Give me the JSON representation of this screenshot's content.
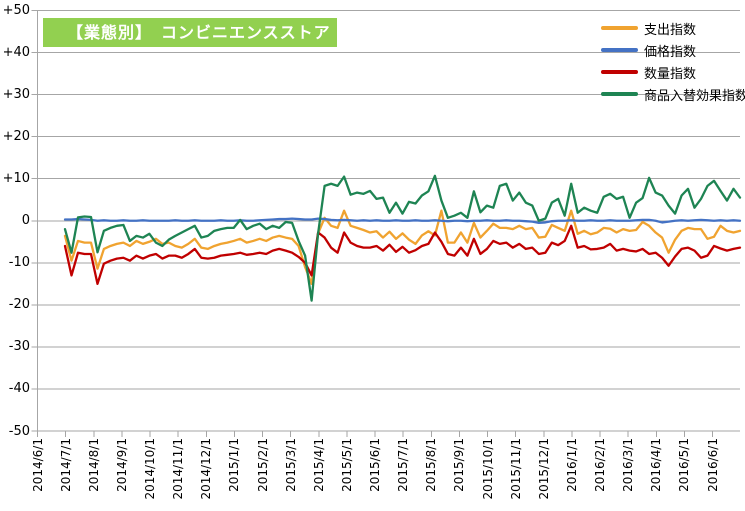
{
  "title": {
    "text": "【業態別】　コンビニエンスストア",
    "bg_color": "#92D050",
    "text_color": "#FFFFFF"
  },
  "chart_data": {
    "type": "line",
    "title": "【業態別】 コンビニエンスストア",
    "grid": true,
    "legend_position": "top-right",
    "y_axis": {
      "min": -50,
      "max": 50,
      "step": 10,
      "tick_labels": [
        "+50",
        "+40",
        "+30",
        "+20",
        "+10",
        "0",
        "-10",
        "-20",
        "-30",
        "-40",
        "-50"
      ]
    },
    "x_axis": {
      "tick_labels": [
        "2014/6/1",
        "2014/7/1",
        "2014/8/1",
        "2014/9/1",
        "2014/10/1",
        "2014/11/1",
        "2014/12/1",
        "2015/1/1",
        "2015/2/1",
        "2015/3/1",
        "2015/4/1",
        "2015/5/1",
        "2015/6/1",
        "2015/7/1",
        "2015/8/1",
        "2015/9/1",
        "2015/10/1",
        "2015/11/1",
        "2015/12/1",
        "2016/1/1",
        "2016/2/1",
        "2016/3/1",
        "2016/4/1",
        "2016/5/1",
        "2016/6/1"
      ]
    },
    "series": [
      {
        "name": "支出指数",
        "key": "expenditure-index",
        "color": "#F0A330",
        "values": [
          -3.6,
          -9.5,
          -4.8,
          -5.2,
          -5.2,
          -11.4,
          -6.7,
          -6,
          -5.5,
          -5.2,
          -6,
          -4.8,
          -5.5,
          -5,
          -4.3,
          -5.5,
          -5.2,
          -6,
          -6.4,
          -5.5,
          -4.3,
          -6.4,
          -6.7,
          -6,
          -5.5,
          -5.2,
          -4.8,
          -4.3,
          -5.2,
          -4.8,
          -4.3,
          -4.8,
          -4,
          -3.6,
          -4,
          -4.3,
          -6,
          -11,
          -15,
          -3,
          0.7,
          -1.2,
          -1.7,
          2.4,
          -1.2,
          -1.7,
          -2.2,
          -2.8,
          -2.5,
          -4,
          -2.6,
          -4.3,
          -3,
          -4.5,
          -5.5,
          -3.5,
          -2.5,
          -3.5,
          2.4,
          -5.2,
          -5.2,
          -2.8,
          -5.2,
          -0.5,
          -4,
          -2.4,
          -0.7,
          -1.7,
          -1.7,
          -2,
          -1.2,
          -2,
          -1.7,
          -4,
          -3.8,
          -1,
          -1.7,
          -2.4,
          2.4,
          -3.1,
          -2.4,
          -3.2,
          -2.8,
          -1.7,
          -1.9,
          -2.8,
          -2,
          -2.4,
          -2.2,
          -0.3,
          -1.2,
          -2.8,
          -4,
          -7.6,
          -4.5,
          -2.4,
          -1.7,
          -2,
          -2,
          -4.3,
          -3.8,
          -1.2,
          -2.4,
          -2.8,
          -2.4
        ]
      },
      {
        "name": "価格指数",
        "key": "price-index",
        "color": "#4472C4",
        "values": [
          0.3,
          0.3,
          0.4,
          0.3,
          0.2,
          0,
          0.1,
          0,
          0,
          0.1,
          0,
          0,
          0.1,
          0,
          0,
          0,
          0,
          0.1,
          0,
          0,
          0.1,
          0,
          0,
          0,
          0.1,
          0,
          0,
          0.1,
          0,
          0,
          0.1,
          0.2,
          0.3,
          0.4,
          0.4,
          0.5,
          0.4,
          0.3,
          0.3,
          0.5,
          0.4,
          0.2,
          0.1,
          0.2,
          0.1,
          0,
          0.1,
          0,
          0.1,
          0,
          0,
          0.1,
          0,
          0,
          0.1,
          0,
          0,
          0.1,
          0,
          -0.1,
          0,
          0,
          -0.1,
          0,
          0,
          0.1,
          0,
          0,
          0.1,
          0,
          0,
          -0.1,
          -0.2,
          -0.5,
          -0.4,
          -0.1,
          0,
          0,
          0.1,
          0,
          0,
          0.1,
          0,
          0,
          0.1,
          0,
          0,
          0,
          0.1,
          0.2,
          0.2,
          0,
          -0.4,
          -0.2,
          0,
          0.1,
          0,
          0.1,
          0.2,
          0.1,
          0,
          0.1,
          0,
          0.1,
          0
        ]
      },
      {
        "name": "数量指数",
        "key": "quantity-index",
        "color": "#C00000",
        "values": [
          -6,
          -13,
          -7.6,
          -7.9,
          -7.9,
          -15,
          -10.2,
          -9.5,
          -9,
          -8.8,
          -9.5,
          -8.3,
          -9,
          -8.3,
          -7.9,
          -9,
          -8.3,
          -8.3,
          -8.8,
          -7.9,
          -6.7,
          -8.8,
          -9,
          -8.8,
          -8.3,
          -8.1,
          -7.9,
          -7.6,
          -8.1,
          -7.9,
          -7.6,
          -7.9,
          -7.1,
          -6.7,
          -7.1,
          -7.6,
          -8.6,
          -10,
          -13,
          -2.8,
          -4,
          -6.4,
          -7.6,
          -2.8,
          -5.2,
          -6,
          -6.4,
          -6.4,
          -6,
          -7.1,
          -5.7,
          -7.4,
          -6.2,
          -7.6,
          -7,
          -6,
          -5.5,
          -2.8,
          -5,
          -7.9,
          -8.3,
          -6.4,
          -8.3,
          -4.3,
          -7.9,
          -6.7,
          -4.8,
          -5.5,
          -5.2,
          -6.4,
          -5.5,
          -6.7,
          -6.4,
          -7.9,
          -7.6,
          -5.2,
          -5.8,
          -4.8,
          -1.2,
          -6.4,
          -6,
          -6.8,
          -6.7,
          -6.4,
          -5.5,
          -7.1,
          -6.7,
          -7.1,
          -7.3,
          -6.7,
          -7.9,
          -7.6,
          -8.8,
          -10.7,
          -8.5,
          -6.7,
          -6.4,
          -7.1,
          -8.8,
          -8.3,
          -6,
          -6.6,
          -7.1,
          -6.7,
          -6.4
        ]
      },
      {
        "name": "商品入替効果指数",
        "key": "product-replacement-index",
        "color": "#1E8453",
        "values": [
          -2,
          -7.6,
          0.8,
          1,
          0.9,
          -7.5,
          -2.4,
          -1.7,
          -1.2,
          -1,
          -4.8,
          -3.6,
          -4,
          -3.1,
          -5.2,
          -6,
          -4.5,
          -3.6,
          -2.8,
          -2,
          -1.2,
          -4,
          -3.6,
          -2.4,
          -2,
          -1.7,
          -1.7,
          0.2,
          -2,
          -1.2,
          -0.7,
          -2,
          -1.2,
          -1.7,
          -0.3,
          -0.5,
          -4.8,
          -8.3,
          -19,
          -3,
          8.3,
          8.8,
          8.3,
          10.5,
          6.2,
          6.7,
          6.4,
          7.1,
          5.2,
          5.5,
          1.9,
          4.3,
          1.7,
          4.5,
          4.1,
          6,
          7,
          10.7,
          4.8,
          0.7,
          1.2,
          1.9,
          0.7,
          7,
          2,
          3.6,
          3.1,
          8.3,
          8.8,
          4.8,
          6.7,
          4.3,
          3.6,
          0,
          0.5,
          4.3,
          5.2,
          1.2,
          8.8,
          1.9,
          3.1,
          2.4,
          1.9,
          5.7,
          6.4,
          5.2,
          5.7,
          0.7,
          4.3,
          5.4,
          10.2,
          6.7,
          6,
          3.6,
          1.7,
          6,
          7.6,
          3.1,
          5.2,
          8.3,
          9.5,
          7.1,
          4.8,
          7.6,
          5.5
        ]
      }
    ]
  }
}
